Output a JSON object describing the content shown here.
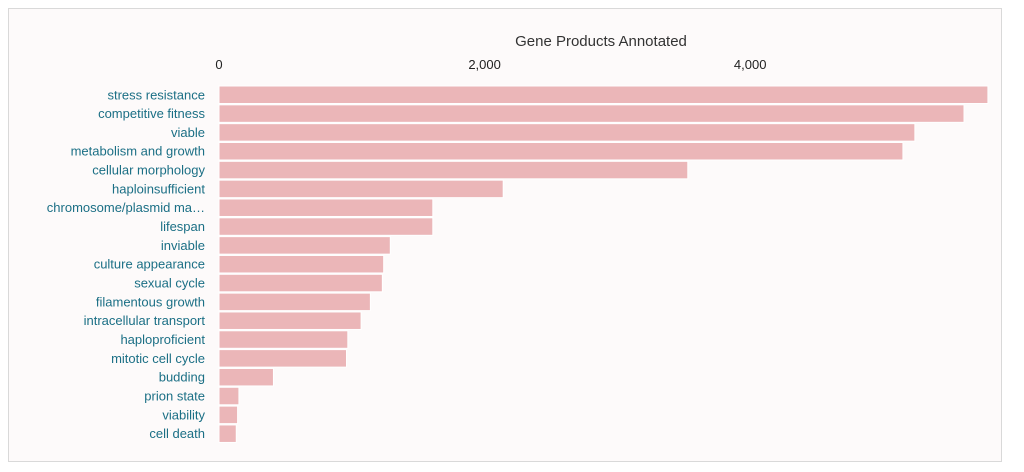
{
  "chart_data": {
    "type": "bar",
    "orientation": "horizontal",
    "xlabel": "Gene Products Annotated",
    "xlim": [
      0,
      5800
    ],
    "xticks": [
      0,
      2000,
      4000
    ],
    "xtick_labels": [
      "0",
      "2,000",
      "4,000"
    ],
    "grid": false,
    "colors": {
      "bar": "#ebb6b8",
      "category_text": "#1b6f85"
    },
    "categories": [
      "stress resistance",
      "competitive fitness",
      "viable",
      "metabolism and growth",
      "cellular morphology",
      "haploinsufficient",
      "chromosome/plasmid ma…",
      "lifespan",
      "inviable",
      "culture appearance",
      "sexual cycle",
      "filamentous growth",
      "intracellular transport",
      "haploproficient",
      "mitotic cell cycle",
      "budding",
      "prion state",
      "viability",
      "cell death"
    ],
    "values": [
      5790,
      5610,
      5240,
      5150,
      3530,
      2140,
      1610,
      1610,
      1290,
      1240,
      1230,
      1140,
      1070,
      970,
      960,
      410,
      150,
      140,
      130
    ]
  }
}
